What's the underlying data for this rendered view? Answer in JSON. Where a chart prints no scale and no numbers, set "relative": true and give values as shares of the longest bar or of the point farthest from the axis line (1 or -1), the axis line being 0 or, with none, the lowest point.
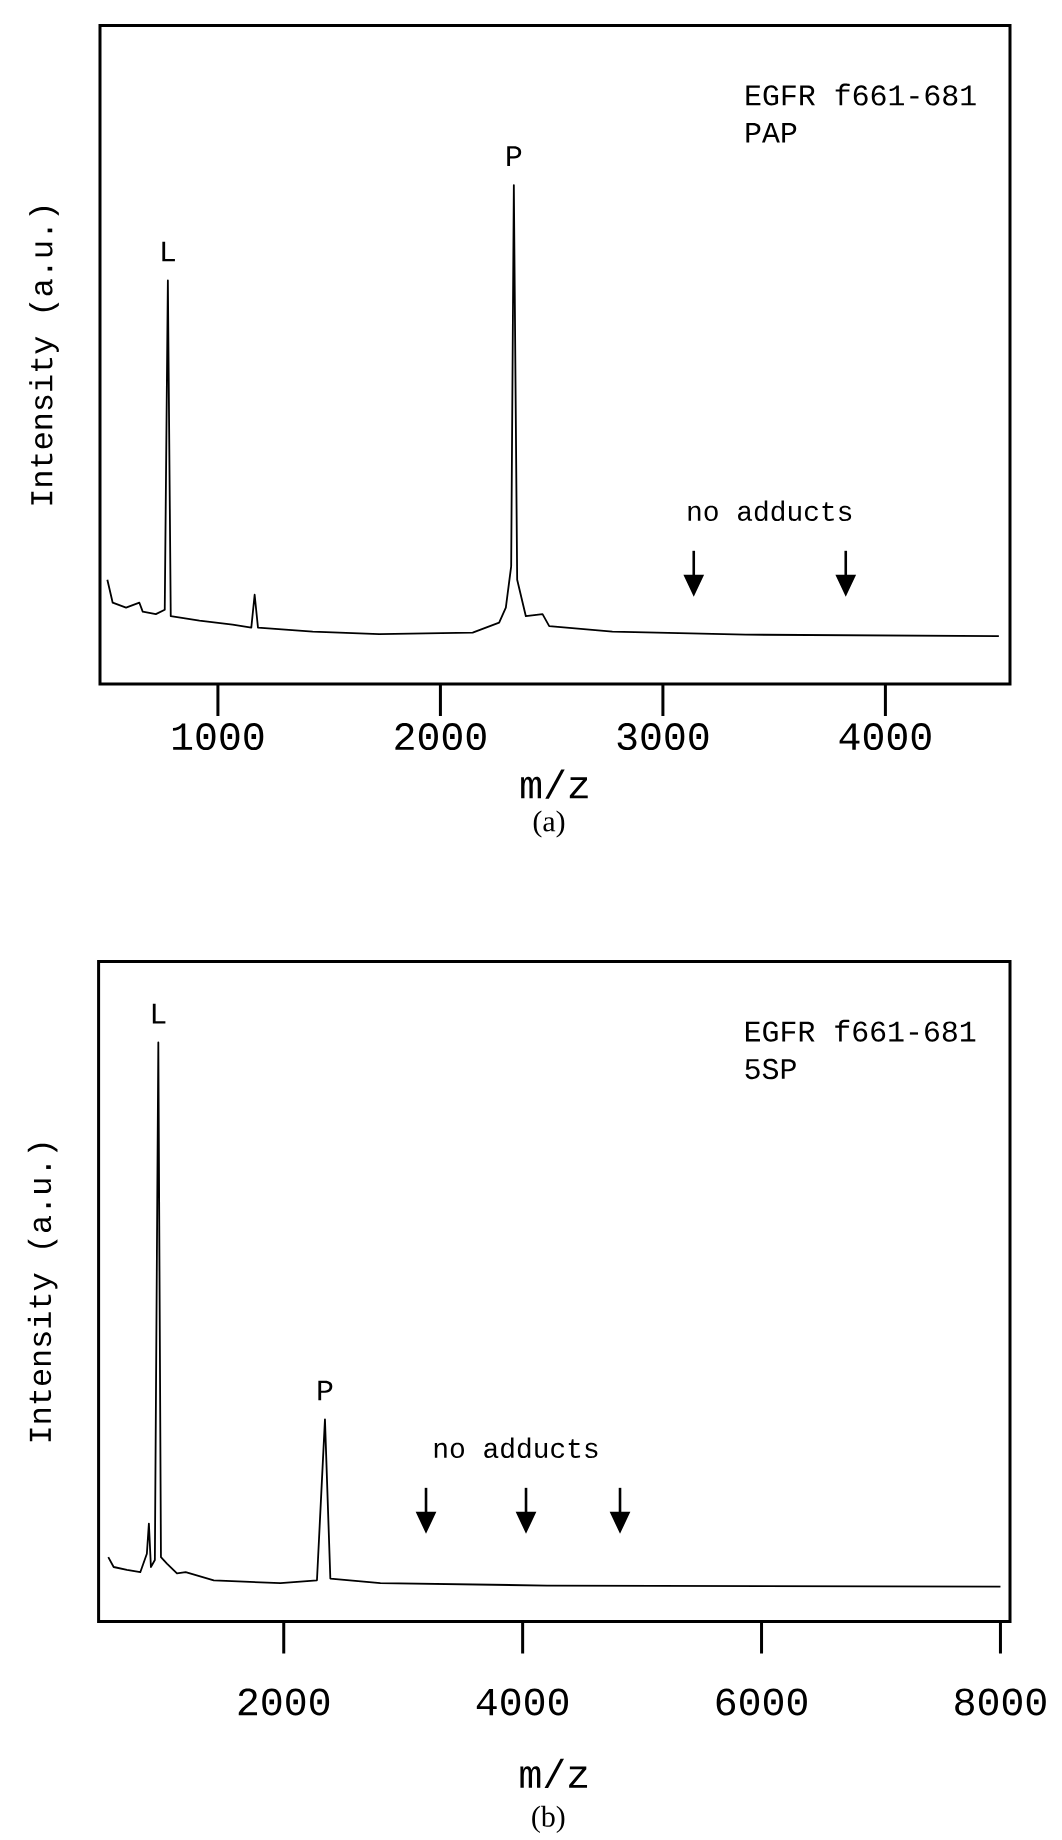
{
  "chart_data": [
    {
      "type": "line",
      "relative": true,
      "color": "#000000",
      "xlabel": "m/z",
      "ylabel": "Intensity (a.u.)",
      "xlim": [
        470,
        4560
      ],
      "xticks": [
        1000,
        2000,
        3000,
        4000
      ],
      "x": [
        503,
        527,
        587,
        647,
        662,
        721,
        761,
        775,
        788,
        917,
        1066,
        1150,
        1165,
        1180,
        1426,
        1725,
        2145,
        2264,
        2294,
        2318,
        2330,
        2345,
        2384,
        2459,
        2489,
        2773,
        3372,
        4510
      ],
      "values": [
        0.209,
        0.163,
        0.153,
        0.163,
        0.145,
        0.14,
        0.149,
        0.809,
        0.136,
        0.127,
        0.119,
        0.113,
        0.179,
        0.113,
        0.105,
        0.1,
        0.103,
        0.123,
        0.153,
        0.236,
        1.0,
        0.209,
        0.136,
        0.14,
        0.116,
        0.105,
        0.099,
        0.096
      ],
      "annotations": [
        {
          "text": "L",
          "x": 775,
          "y": 0.809
        },
        {
          "text": "P",
          "x": 2330,
          "y": 1.0
        },
        "EGFR f661-681",
        "PAP",
        "no adducts",
        "(a)"
      ]
    },
    {
      "type": "line",
      "relative": true,
      "color": "#000000",
      "xlabel": "m/z",
      "ylabel": "Intensity (a.u.)",
      "xlim": [
        450,
        8080
      ],
      "xticks": [
        2000,
        4000,
        6000,
        8000
      ],
      "x": [
        531,
        576,
        687,
        799,
        854,
        871,
        888,
        921,
        950,
        972,
        1022,
        1106,
        1179,
        1414,
        1972,
        2278,
        2345,
        2390,
        2809,
        4205,
        8000
      ],
      "values": [
        0.111,
        0.094,
        0.089,
        0.085,
        0.117,
        0.169,
        0.094,
        0.106,
        1.0,
        0.111,
        0.1,
        0.083,
        0.085,
        0.071,
        0.066,
        0.071,
        0.349,
        0.074,
        0.066,
        0.062,
        0.06
      ],
      "annotations": [
        {
          "text": "L",
          "x": 950,
          "y": 1.0
        },
        {
          "text": "P",
          "x": 2345,
          "y": 0.349
        },
        "EGFR f661-681",
        "5SP",
        "no adducts",
        "(b)"
      ]
    }
  ]
}
